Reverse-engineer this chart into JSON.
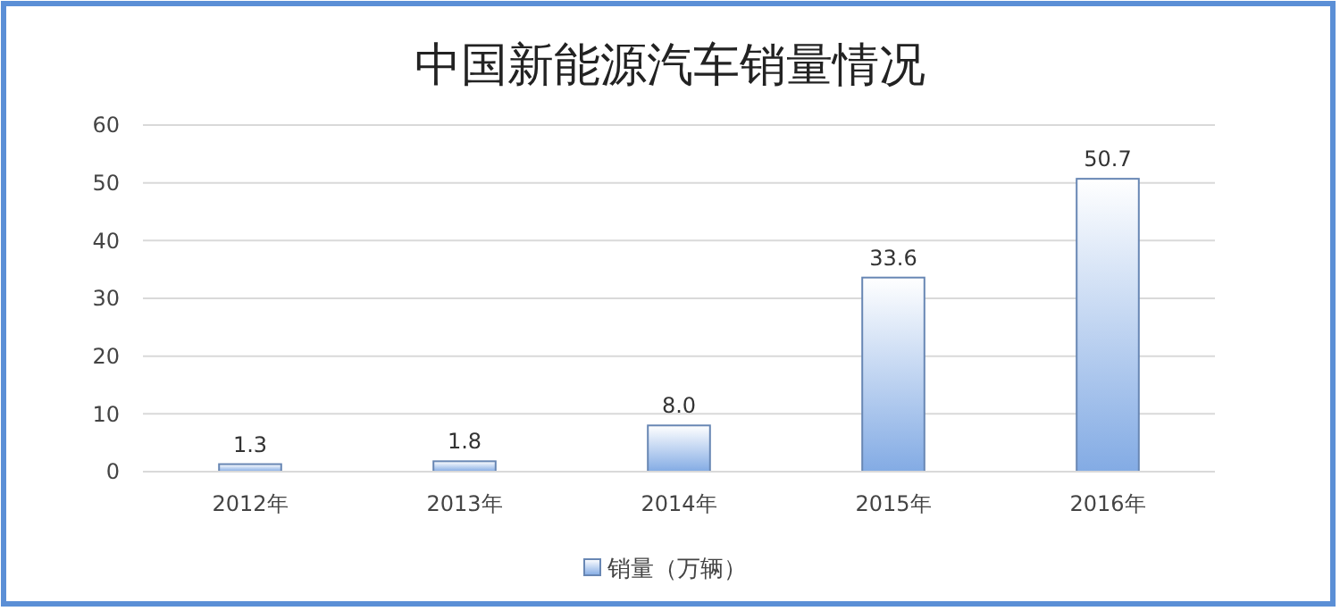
{
  "chart_data": {
    "type": "bar",
    "title": "中国新能源汽车销量情况",
    "categories": [
      "2012年",
      "2013年",
      "2014年",
      "2015年",
      "2016年"
    ],
    "series": [
      {
        "name": "销量（万辆）",
        "color": "#6887b4",
        "values": [
          1.3,
          1.8,
          8.0,
          33.6,
          50.7
        ]
      }
    ],
    "value_labels": [
      "1.3",
      "1.8",
      "8.0",
      "33.6",
      "50.7"
    ],
    "ylim": [
      0,
      60
    ],
    "yticks": [
      0,
      10,
      20,
      30,
      40,
      50,
      60
    ],
    "grid": "y",
    "legend": "bottom"
  }
}
